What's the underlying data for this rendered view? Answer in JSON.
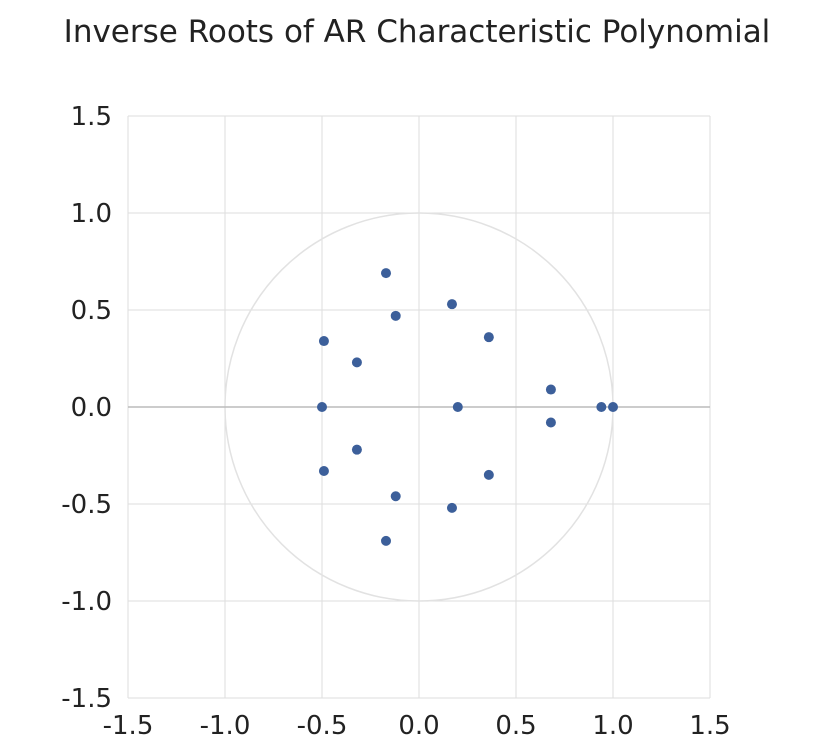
{
  "chart_data": {
    "type": "scatter",
    "title": "Inverse Roots of AR Characteristic Polynomial",
    "xlabel": "",
    "ylabel": "",
    "xlim": [
      -1.5,
      1.5
    ],
    "ylim": [
      -1.5,
      1.5
    ],
    "x_ticks": [
      "-1.5",
      "-1.0",
      "-0.5",
      "0.0",
      "0.5",
      "1.0",
      "1.5"
    ],
    "y_ticks": [
      "1.5",
      "1.0",
      "0.5",
      "0.0",
      "-0.5",
      "-1.0",
      "-1.5"
    ],
    "grid": true,
    "unit_circle": true,
    "legend": "none",
    "colors": {
      "points": "#3c5f9a",
      "grid": "#dddddd",
      "axis": "#bbbbbb",
      "circle": "#e2e2e2"
    },
    "points": [
      {
        "x": -0.17,
        "y": 0.69
      },
      {
        "x": -0.12,
        "y": 0.47
      },
      {
        "x": 0.17,
        "y": 0.53
      },
      {
        "x": 0.36,
        "y": 0.36
      },
      {
        "x": -0.49,
        "y": 0.34
      },
      {
        "x": -0.32,
        "y": 0.23
      },
      {
        "x": 0.68,
        "y": 0.09
      },
      {
        "x": 0.94,
        "y": 0.0
      },
      {
        "x": 1.0,
        "y": 0.0
      },
      {
        "x": -0.5,
        "y": 0.0
      },
      {
        "x": 0.2,
        "y": 0.0
      },
      {
        "x": 0.68,
        "y": -0.08
      },
      {
        "x": -0.32,
        "y": -0.22
      },
      {
        "x": -0.49,
        "y": -0.33
      },
      {
        "x": 0.36,
        "y": -0.35
      },
      {
        "x": -0.12,
        "y": -0.46
      },
      {
        "x": 0.17,
        "y": -0.52
      },
      {
        "x": -0.17,
        "y": -0.69
      }
    ]
  }
}
